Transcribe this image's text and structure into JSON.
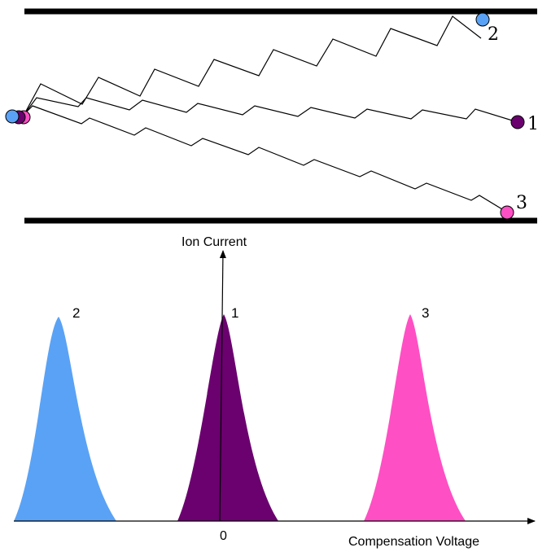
{
  "colors": {
    "ion_2": "#5aa2f5",
    "ion_1": "#6b006f",
    "ion_3": "#ff4fc4",
    "plates": "#000000",
    "trajectory": "#000000"
  },
  "electrodes": {
    "count": 2
  },
  "ions": [
    {
      "id": "ion-2",
      "label": "2",
      "color_key": "ion_2"
    },
    {
      "id": "ion-1",
      "label": "1",
      "color_key": "ion_1"
    },
    {
      "id": "ion-3",
      "label": "3",
      "color_key": "ion_3"
    }
  ],
  "axes": {
    "y_label": "Ion Current",
    "x_label": "Compensation Voltage",
    "x_zero_label": "0"
  },
  "peaks": [
    {
      "label": "2",
      "color_key": "ion_2",
      "order": 1
    },
    {
      "label": "1",
      "color_key": "ion_1",
      "order": 2
    },
    {
      "label": "3",
      "color_key": "ion_3",
      "order": 3
    }
  ]
}
